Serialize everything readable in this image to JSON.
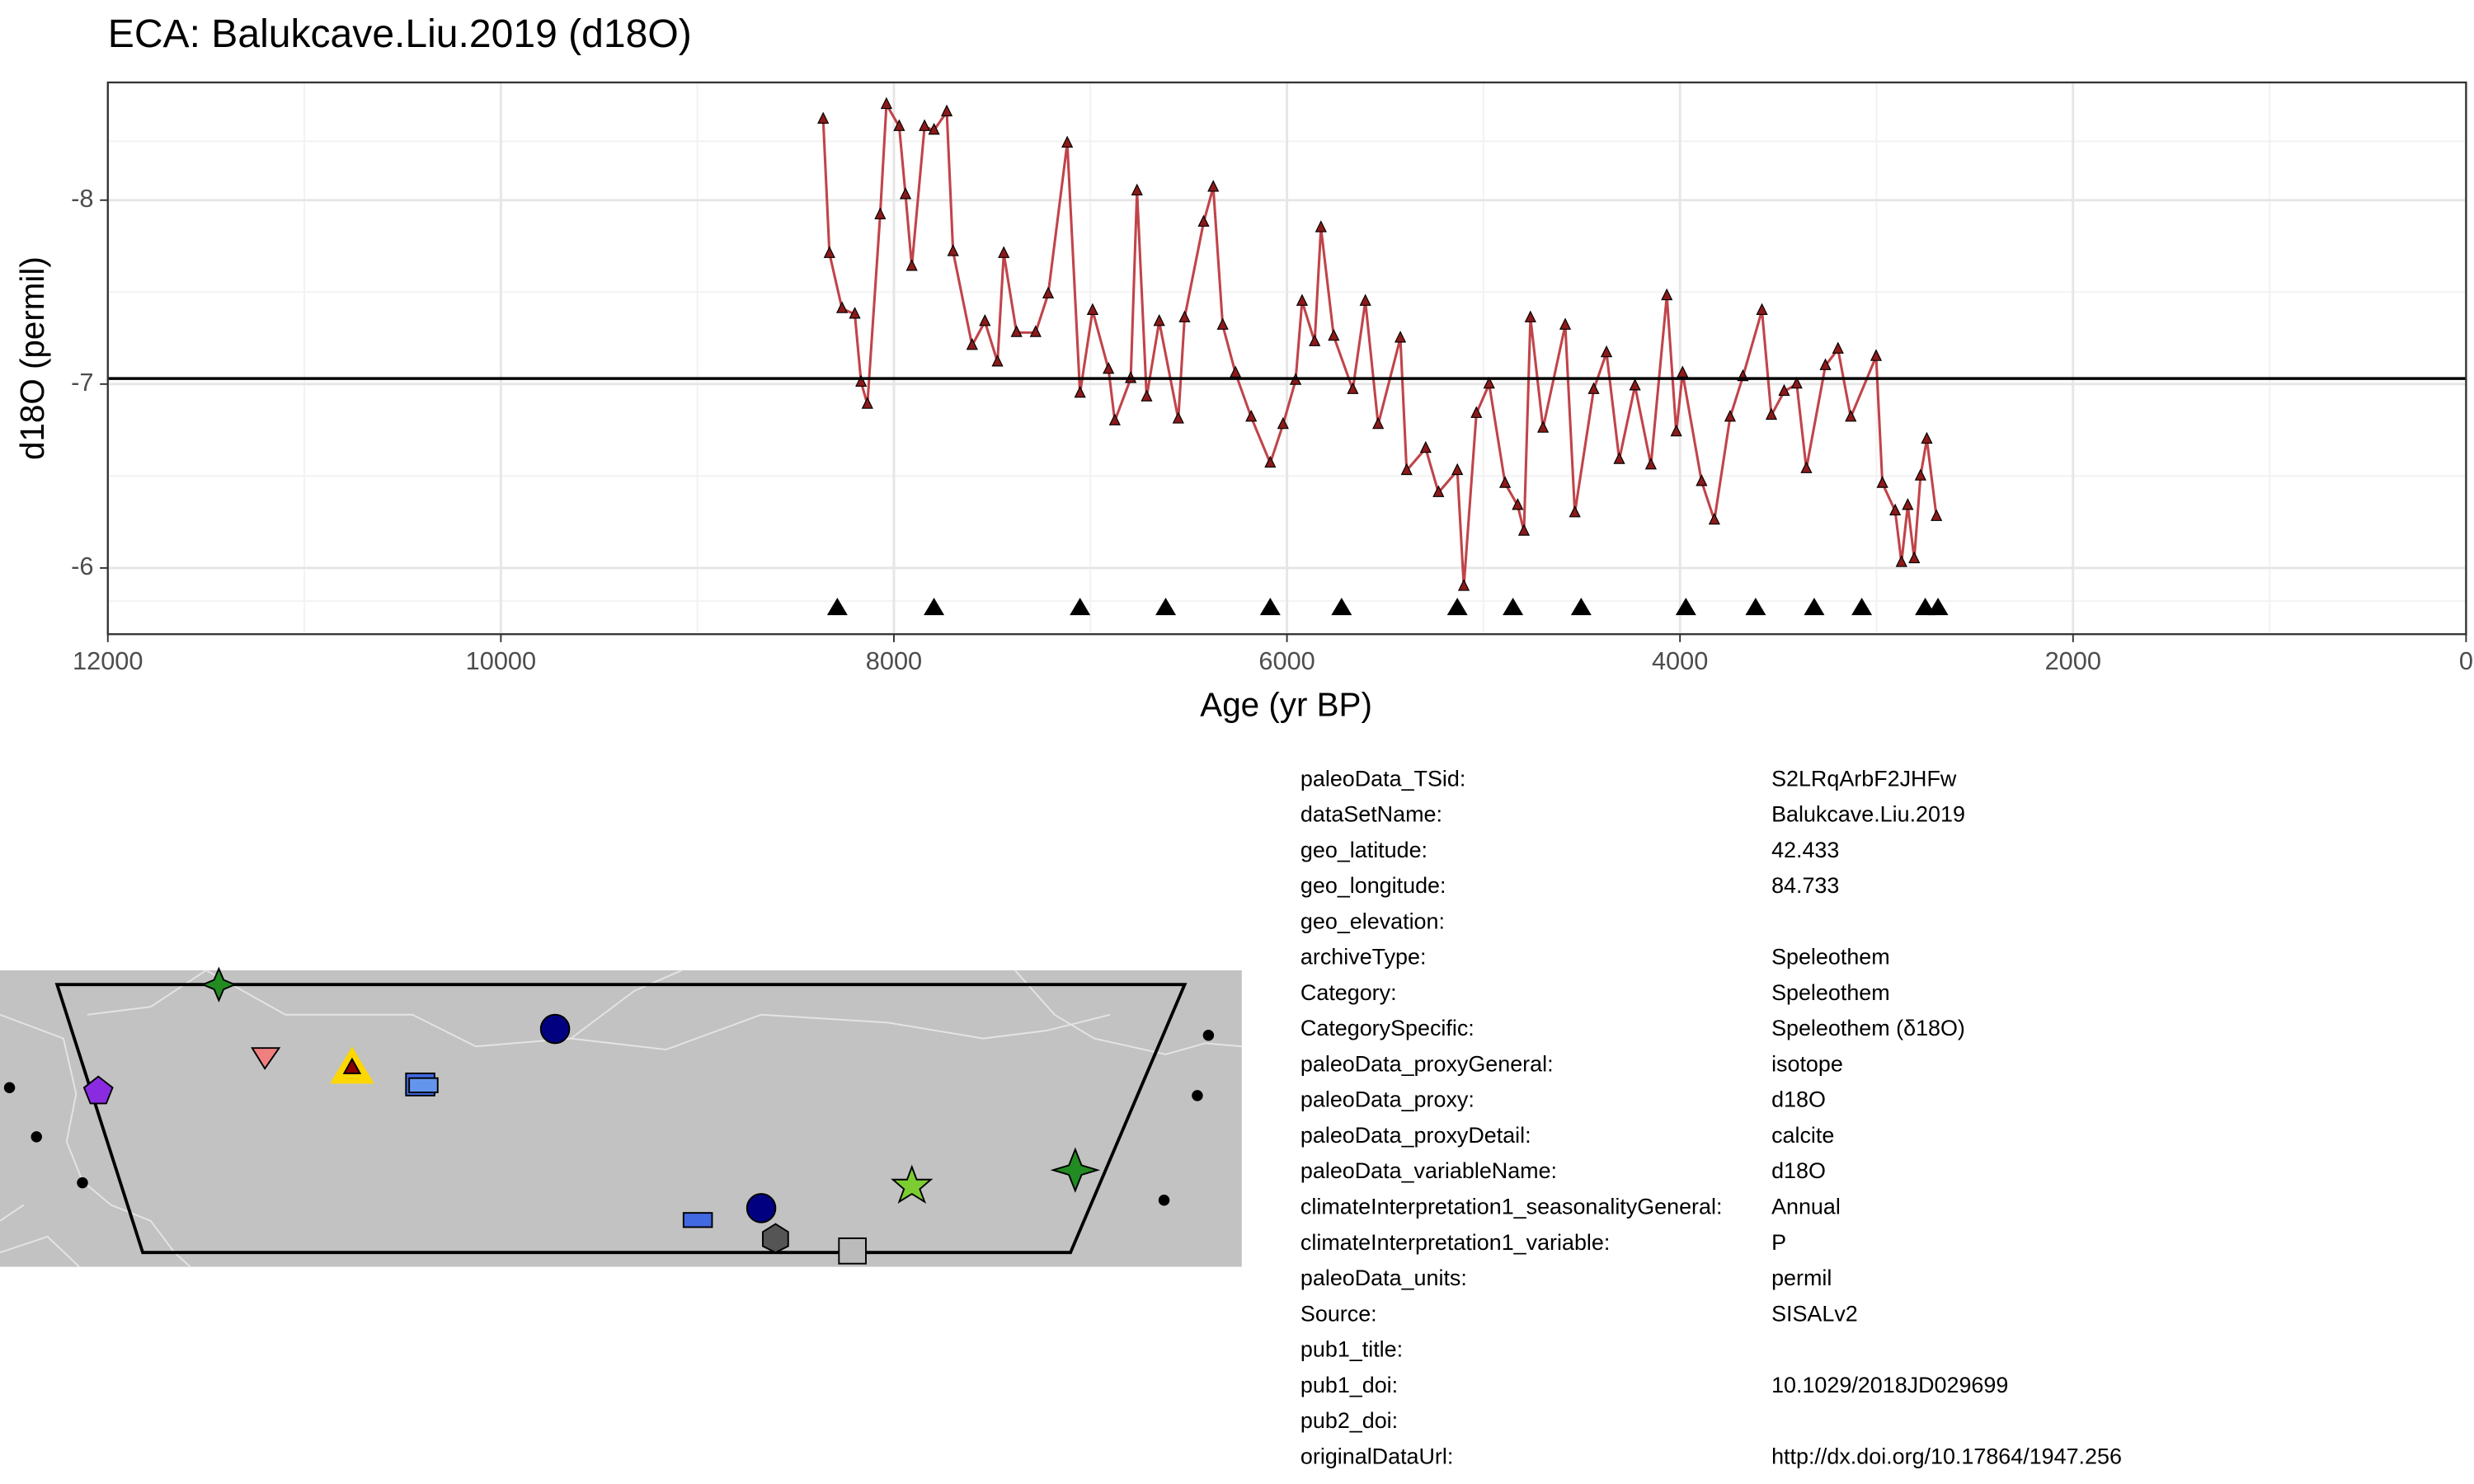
{
  "chart_data": {
    "type": "line",
    "title": "ECA: Balukcave.Liu.2019 (d18O)",
    "x_label": "Age (yr BP)",
    "y_label": "d18O (permil)",
    "xlim": [
      12000,
      0
    ],
    "xticks": [
      12000,
      10000,
      8000,
      6000,
      4000,
      2000,
      0
    ],
    "ylim": [
      -5.64,
      -8.64
    ],
    "yticks": [
      -8,
      -7,
      -6
    ],
    "grid": true,
    "hline": -7.03,
    "series": [
      {
        "color": "#c0444a",
        "marker_color": "#8b1a1a",
        "x": [
          8360,
          8328,
          8264,
          8199,
          8167,
          8135,
          8070,
          8038,
          7973,
          7941,
          7909,
          7844,
          7796,
          7731,
          7699,
          7602,
          7537,
          7473,
          7441,
          7376,
          7279,
          7215,
          7118,
          7053,
          6989,
          6908,
          6876,
          6795,
          6763,
          6714,
          6650,
          6553,
          6521,
          6424,
          6375,
          6327,
          6262,
          6182,
          6085,
          6020,
          5956,
          5923,
          5859,
          5827,
          5762,
          5665,
          5601,
          5536,
          5423,
          5391,
          5294,
          5229,
          5133,
          5100,
          5036,
          4971,
          4890,
          4826,
          4794,
          4761,
          4697,
          4584,
          4535,
          4439,
          4374,
          4309,
          4229,
          4148,
          4067,
          4019,
          3987,
          3890,
          3825,
          3745,
          3680,
          3583,
          3535,
          3470,
          3406,
          3357,
          3260,
          3196,
          3131,
          3002,
          2970,
          2905,
          2873,
          2841,
          2808,
          2776,
          2744,
          2695
        ],
        "values": [
          -8.44,
          -7.71,
          -7.41,
          -7.38,
          -7.01,
          -6.89,
          -7.92,
          -8.52,
          -8.4,
          -8.03,
          -7.64,
          -8.4,
          -8.38,
          -8.48,
          -7.72,
          -7.21,
          -7.34,
          -7.12,
          -7.71,
          -7.28,
          -7.28,
          -7.49,
          -8.31,
          -6.95,
          -7.4,
          -7.08,
          -6.8,
          -7.03,
          -8.05,
          -6.93,
          -7.34,
          -6.81,
          -7.36,
          -7.88,
          -8.07,
          -7.32,
          -7.06,
          -6.82,
          -6.57,
          -6.78,
          -7.02,
          -7.45,
          -7.23,
          -7.85,
          -7.26,
          -6.97,
          -7.45,
          -6.78,
          -7.25,
          -6.53,
          -6.65,
          -6.41,
          -6.53,
          -5.9,
          -6.84,
          -7.0,
          -6.46,
          -6.34,
          -6.2,
          -7.36,
          -6.76,
          -7.32,
          -6.3,
          -6.97,
          -7.17,
          -6.59,
          -6.99,
          -6.56,
          -7.48,
          -6.74,
          -7.06,
          -6.47,
          -6.26,
          -6.82,
          -7.04,
          -7.4,
          -6.83,
          -6.96,
          -7.0,
          -6.54,
          -7.1,
          -7.19,
          -6.82,
          -7.15,
          -6.46,
          -6.31,
          -6.03,
          -6.34,
          -6.05,
          -6.5,
          -6.7,
          -6.28
        ]
      }
    ],
    "chron_ages": [
      8288,
      7796,
      7053,
      6617,
      6085,
      5722,
      5133,
      4850,
      4503,
      3970,
      3615,
      3317,
      3075,
      2752,
      2687
    ]
  },
  "metadata": [
    {
      "key": "paleoData_TSid:",
      "value": "S2LRqArbF2JHFw"
    },
    {
      "key": "dataSetName:",
      "value": "Balukcave.Liu.2019"
    },
    {
      "key": "geo_latitude:",
      "value": "42.433"
    },
    {
      "key": "geo_longitude:",
      "value": "84.733"
    },
    {
      "key": "geo_elevation:"
    },
    {
      "key": "archiveType:",
      "value": "Speleothem"
    },
    {
      "key": "Category:",
      "value": "Speleothem"
    },
    {
      "key": "CategorySpecific:",
      "value": "Speleothem (δ18O)"
    },
    {
      "key": "paleoData_proxyGeneral:",
      "value": "isotope"
    },
    {
      "key": "paleoData_proxy:",
      "value": "d18O"
    },
    {
      "key": "paleoData_proxyDetail:",
      "value": "calcite"
    },
    {
      "key": "paleoData_variableName:",
      "value": "d18O"
    },
    {
      "key": "climateInterpretation1_seasonalityGeneral:",
      "value": "Annual"
    },
    {
      "key": "climateInterpretation1_variable:",
      "value": "P"
    },
    {
      "key": "paleoData_units:",
      "value": "permil"
    },
    {
      "key": "Source:",
      "value": "SISALv2"
    },
    {
      "key": "pub1_title:"
    },
    {
      "key": "pub1_doi:",
      "value": "10.1029/2018JD029699"
    },
    {
      "key": "pub2_doi:"
    },
    {
      "key": "originalDataUrl:",
      "value": "http://dx.doi.org/10.17864/1947.256"
    }
  ]
}
